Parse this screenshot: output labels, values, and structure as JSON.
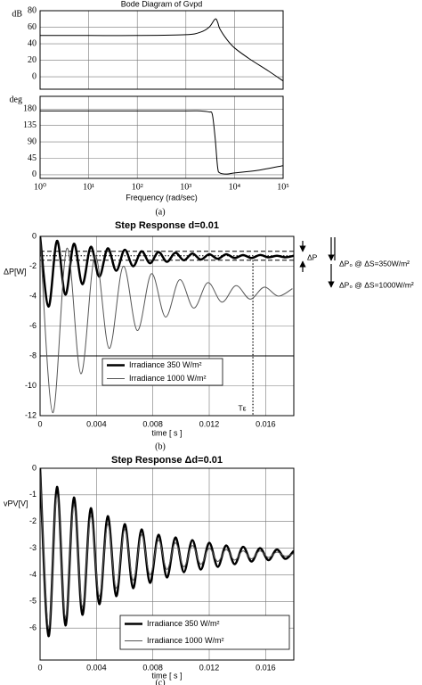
{
  "chart_data": [
    {
      "type": "bode",
      "title": "Bode Diagram of Gvpd",
      "xlabel": "Frequency (rad/sec)",
      "caption": "(a)",
      "xscale": "log",
      "grid": true,
      "xlim": [
        1,
        100000
      ],
      "xticks": [
        {
          "value": 1,
          "label": "10⁰"
        },
        {
          "value": 10,
          "label": "10¹"
        },
        {
          "value": 100,
          "label": "10²"
        },
        {
          "value": 1000,
          "label": "10³"
        },
        {
          "value": 10000,
          "label": "10⁴"
        },
        {
          "value": 100000,
          "label": "10⁵"
        }
      ],
      "panels": [
        {
          "ylabel": "dB",
          "ylim": [
            -15,
            80
          ],
          "yticks": [
            0,
            20,
            40,
            60,
            80
          ],
          "series": [
            {
              "color": "#000000",
              "width": 1,
              "x": [
                1,
                10,
                100,
                1000,
                2000,
                3000,
                4000,
                4500,
                5000,
                7000,
                10000,
                20000,
                50000,
                100000
              ],
              "values": [
                50,
                50,
                50,
                51,
                54,
                60,
                70,
                66,
                58,
                45,
                35,
                22,
                7,
                -5
              ]
            }
          ]
        },
        {
          "ylabel": "deg",
          "ylim": [
            -10,
            215
          ],
          "yticks": [
            0,
            45,
            90,
            135,
            180
          ],
          "series": [
            {
              "color": "#000000",
              "width": 1,
              "x": [
                1,
                100,
                1000,
                2000,
                3000,
                3500,
                4000,
                4500,
                5000,
                7000,
                10000,
                30000,
                100000
              ],
              "values": [
                175,
                175,
                175,
                175,
                172,
                165,
                100,
                20,
                5,
                2,
                5,
                12,
                25
              ]
            }
          ]
        }
      ]
    },
    {
      "type": "line",
      "title": "Step Response    d=0.01",
      "xlabel": "time [ s ]",
      "ylabel": "ΔP[W]",
      "caption": "(b)",
      "grid": true,
      "legend": "lower left",
      "xlim": [
        0,
        0.018
      ],
      "xticks": [
        0,
        0.004,
        0.008,
        0.012,
        0.016
      ],
      "ylim": [
        -12,
        0
      ],
      "yticks": [
        0,
        -2,
        -4,
        -6,
        -8,
        -10,
        -12
      ],
      "series": [
        {
          "name": "Irradiance 350 W/m²",
          "color": "#000000",
          "width": 2.5,
          "x": [
            0,
            0.0006,
            0.0012,
            0.0018,
            0.0024,
            0.003,
            0.0036,
            0.0042,
            0.0048,
            0.0054,
            0.006,
            0.0066,
            0.0072,
            0.0078,
            0.0084,
            0.009,
            0.0096,
            0.0102,
            0.0108,
            0.0114,
            0.012,
            0.0126,
            0.0132,
            0.0138,
            0.0144,
            0.015,
            0.0156,
            0.0162,
            0.0168,
            0.0174,
            0.018
          ],
          "values": [
            0,
            -4.7,
            -0.3,
            -3.9,
            -0.5,
            -3.2,
            -0.7,
            -2.7,
            -0.8,
            -2.3,
            -0.9,
            -2.0,
            -1.0,
            -1.8,
            -1.05,
            -1.7,
            -1.1,
            -1.6,
            -1.15,
            -1.55,
            -1.2,
            -1.5,
            -1.2,
            -1.45,
            -1.25,
            -1.45,
            -1.25,
            -1.4,
            -1.3,
            -1.4,
            -1.3
          ]
        },
        {
          "name": "Irradiance 1000 W/m²",
          "color": "#555555",
          "width": 1,
          "x": [
            0,
            0.0009,
            0.0019,
            0.0029,
            0.0039,
            0.0049,
            0.0059,
            0.0069,
            0.0079,
            0.0089,
            0.0099,
            0.0109,
            0.0119,
            0.0129,
            0.0139,
            0.0149,
            0.0159,
            0.0169,
            0.0179
          ],
          "values": [
            0,
            -11.8,
            -0.8,
            -9.2,
            -1.3,
            -7.5,
            -2.0,
            -6.3,
            -2.5,
            -5.4,
            -2.9,
            -4.8,
            -3.1,
            -4.4,
            -3.3,
            -4.2,
            -3.4,
            -4.0,
            -3.5
          ]
        }
      ],
      "hlines": [
        {
          "value": -1.0,
          "style": "dashed"
        },
        {
          "value": -1.3,
          "style": "dotted"
        },
        {
          "value": -1.6,
          "style": "dashed"
        },
        {
          "value": -8,
          "style": "solid"
        }
      ],
      "vlines": [
        {
          "value": 0.0151,
          "from": -1.6,
          "to": -12,
          "style": "dotted"
        }
      ],
      "annotations": [
        "ΔP",
        "Tε",
        "ΔP₀ @ ΔS=350W/m²",
        "ΔP₀ @ ΔS=1000W/m²"
      ]
    },
    {
      "type": "line",
      "title": "Step Response Δd=0.01",
      "xlabel": "time [ s ]",
      "ylabel": "vPV[V]",
      "caption": "(c)",
      "grid": true,
      "legend": "lower right",
      "xlim": [
        0,
        0.018
      ],
      "xticks": [
        0,
        0.004,
        0.008,
        0.012,
        0.016
      ],
      "ylim": [
        -7.2,
        0
      ],
      "yticks": [
        0,
        -1,
        -2,
        -3,
        -4,
        -5,
        -6
      ],
      "series": [
        {
          "name": "Irradiance 350 W/m²",
          "color": "#000000",
          "width": 2.5,
          "x": [
            0,
            0.0006,
            0.0012,
            0.0018,
            0.0024,
            0.003,
            0.0036,
            0.0042,
            0.0048,
            0.0054,
            0.006,
            0.0066,
            0.0072,
            0.0078,
            0.0084,
            0.009,
            0.0096,
            0.0102,
            0.0108,
            0.0114,
            0.012,
            0.0126,
            0.0132,
            0.0138,
            0.0144,
            0.015,
            0.0156,
            0.0162,
            0.0168,
            0.0174,
            0.018
          ],
          "values": [
            0,
            -6.3,
            -0.7,
            -5.9,
            -1.1,
            -5.5,
            -1.5,
            -5.1,
            -1.8,
            -4.8,
            -2.1,
            -4.5,
            -2.3,
            -4.3,
            -2.5,
            -4.1,
            -2.6,
            -3.9,
            -2.7,
            -3.8,
            -2.8,
            -3.7,
            -2.9,
            -3.6,
            -2.95,
            -3.5,
            -3.0,
            -3.45,
            -3.05,
            -3.4,
            -3.1
          ]
        },
        {
          "name": "Irradiance 1000 W/m²",
          "color": "#555555",
          "width": 1,
          "x": [
            0,
            0.0006,
            0.0012,
            0.0018,
            0.0024,
            0.003,
            0.0036,
            0.0042,
            0.0048,
            0.0054,
            0.006,
            0.0066,
            0.0072,
            0.0078,
            0.0084,
            0.009,
            0.0096,
            0.0102,
            0.0108,
            0.0114,
            0.012,
            0.0126,
            0.0132,
            0.0138,
            0.0144,
            0.015,
            0.0156,
            0.0162,
            0.0168,
            0.0174,
            0.018
          ],
          "values": [
            0,
            -6.0,
            -1.0,
            -5.6,
            -1.4,
            -5.2,
            -1.8,
            -4.8,
            -2.1,
            -4.5,
            -2.3,
            -4.2,
            -2.5,
            -4.0,
            -2.7,
            -3.8,
            -2.8,
            -3.7,
            -2.9,
            -3.6,
            -3.0,
            -3.5,
            -3.05,
            -3.45,
            -3.1,
            -3.4,
            -3.1,
            -3.35,
            -3.15,
            -3.3,
            -3.2
          ]
        }
      ]
    }
  ]
}
